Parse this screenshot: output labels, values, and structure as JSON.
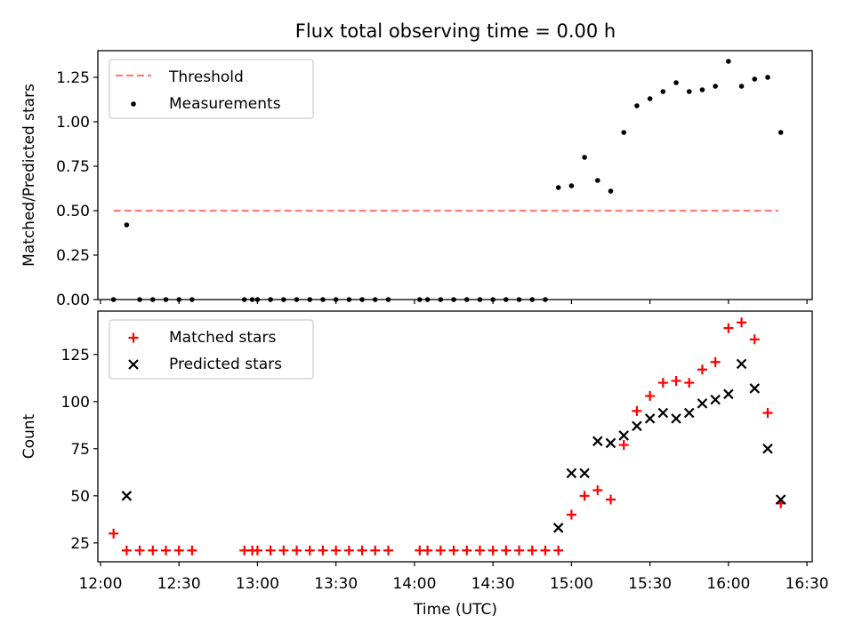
{
  "chart_data": [
    {
      "type": "scatter",
      "title": "Flux total observing time = 0.00 h",
      "xlabel": "",
      "ylabel": "Matched/Predicted stars",
      "xlim": [
        "11:59",
        "16:32"
      ],
      "ylim": [
        0,
        1.4
      ],
      "yticks": [
        0,
        0.25,
        0.5,
        0.75,
        1.0,
        1.25
      ],
      "ytick_labels": [
        "0.00",
        "0.25",
        "0.50",
        "0.75",
        "1.00",
        "1.25"
      ],
      "grid": false,
      "legend": {
        "position": "top-left",
        "entries": [
          "Threshold",
          "Measurements"
        ]
      },
      "series": [
        {
          "name": "Threshold",
          "kind": "dashed-line",
          "color": "#ff7f7f",
          "x": [
            "12:05",
            "16:19"
          ],
          "y": [
            0.5,
            0.5
          ]
        },
        {
          "name": "Measurements",
          "kind": "dots",
          "color": "#000000",
          "x": [
            "12:05",
            "12:10",
            "12:15",
            "12:20",
            "12:25",
            "12:30",
            "12:35",
            "12:55",
            "12:58",
            "13:00",
            "13:05",
            "13:10",
            "13:15",
            "13:20",
            "13:25",
            "13:30",
            "13:35",
            "13:40",
            "13:45",
            "13:50",
            "14:02",
            "14:05",
            "14:10",
            "14:15",
            "14:20",
            "14:25",
            "14:30",
            "14:35",
            "14:40",
            "14:45",
            "14:50",
            "14:55",
            "15:00",
            "15:05",
            "15:10",
            "15:15",
            "15:20",
            "15:25",
            "15:30",
            "15:35",
            "15:40",
            "15:45",
            "15:50",
            "15:55",
            "16:00",
            "16:05",
            "16:10",
            "16:15",
            "16:20"
          ],
          "y": [
            0,
            0.42,
            0,
            0,
            0,
            0,
            0,
            0,
            0,
            0,
            0,
            0,
            0,
            0,
            0,
            0,
            0,
            0,
            0,
            0,
            0,
            0,
            0,
            0,
            0,
            0,
            0,
            0,
            0,
            0,
            0,
            0.63,
            0.64,
            0.8,
            0.67,
            0.61,
            0.94,
            1.09,
            1.13,
            1.17,
            1.22,
            1.17,
            1.18,
            1.2,
            1.34,
            1.2,
            1.24,
            1.25,
            0.94
          ]
        }
      ]
    },
    {
      "type": "scatter",
      "title": "",
      "xlabel": "Time (UTC)",
      "ylabel": "Count",
      "xlim": [
        "11:59",
        "16:32"
      ],
      "ylim": [
        15,
        148
      ],
      "yticks": [
        25,
        50,
        75,
        100,
        125
      ],
      "ytick_labels": [
        "25",
        "50",
        "75",
        "100",
        "125"
      ],
      "xticks": [
        "12:00",
        "12:30",
        "13:00",
        "13:30",
        "14:00",
        "14:30",
        "15:00",
        "15:30",
        "16:00",
        "16:30"
      ],
      "grid": false,
      "legend": {
        "position": "top-left",
        "entries": [
          "Matched stars",
          "Predicted stars"
        ]
      },
      "series": [
        {
          "name": "Matched stars",
          "marker": "+",
          "color": "#ff0000",
          "x": [
            "12:05",
            "12:10",
            "12:15",
            "12:20",
            "12:25",
            "12:30",
            "12:35",
            "12:55",
            "12:58",
            "13:00",
            "13:05",
            "13:10",
            "13:15",
            "13:20",
            "13:25",
            "13:30",
            "13:35",
            "13:40",
            "13:45",
            "13:50",
            "14:02",
            "14:05",
            "14:10",
            "14:15",
            "14:20",
            "14:25",
            "14:30",
            "14:35",
            "14:40",
            "14:45",
            "14:50",
            "14:55",
            "15:00",
            "15:05",
            "15:10",
            "15:15",
            "15:20",
            "15:25",
            "15:30",
            "15:35",
            "15:40",
            "15:45",
            "15:50",
            "15:55",
            "16:00",
            "16:05",
            "16:10",
            "16:15",
            "16:20"
          ],
          "y": [
            30,
            21,
            21,
            21,
            21,
            21,
            21,
            21,
            21,
            21,
            21,
            21,
            21,
            21,
            21,
            21,
            21,
            21,
            21,
            21,
            21,
            21,
            21,
            21,
            21,
            21,
            21,
            21,
            21,
            21,
            21,
            21,
            40,
            50,
            53,
            48,
            77,
            95,
            103,
            110,
            111,
            110,
            117,
            121,
            139,
            142,
            133,
            94,
            46
          ]
        },
        {
          "name": "Predicted stars",
          "marker": "x",
          "color": "#000000",
          "x": [
            "12:10",
            "14:55",
            "15:00",
            "15:05",
            "15:10",
            "15:15",
            "15:20",
            "15:25",
            "15:30",
            "15:35",
            "15:40",
            "15:45",
            "15:50",
            "15:55",
            "16:00",
            "16:05",
            "16:10",
            "16:15",
            "16:20"
          ],
          "y": [
            50,
            33,
            62,
            62,
            79,
            78,
            82,
            87,
            91,
            94,
            91,
            94,
            99,
            101,
            104,
            120,
            107,
            75,
            48
          ]
        }
      ]
    }
  ]
}
